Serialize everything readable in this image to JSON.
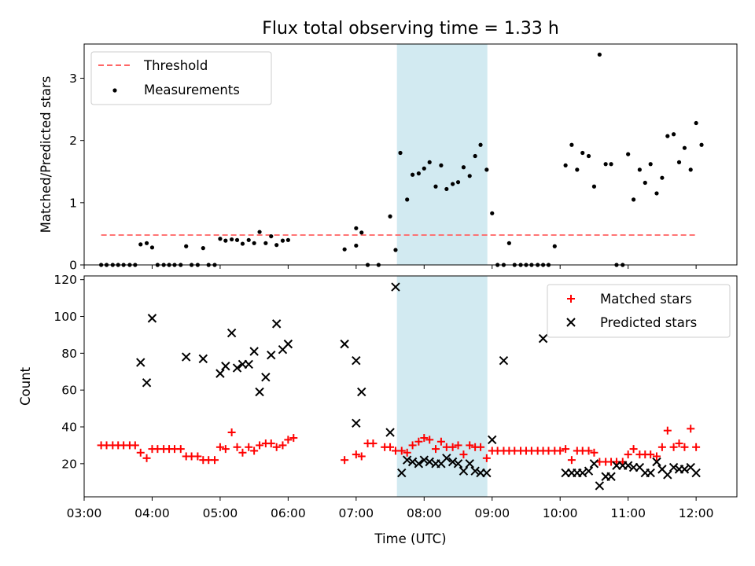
{
  "chart_data": [
    {
      "type": "scatter",
      "title": "Flux total observing time = 1.33 h",
      "xlabel": "",
      "ylabel": "Matched/Predicted stars",
      "ylim": [
        0,
        3.55
      ],
      "xlim": [
        3.0,
        12.6
      ],
      "yticks": [
        0,
        1,
        2,
        3
      ],
      "shaded_span": {
        "start": 7.6,
        "end": 8.93,
        "color": "#add8e6"
      },
      "legend": {
        "placement": "top-left",
        "entries": [
          "Threshold",
          "Measurements"
        ]
      },
      "threshold": {
        "name": "Threshold",
        "value": 0.48,
        "x_start": 3.25,
        "x_end": 12.0,
        "color": "#ff6666"
      },
      "series": [
        {
          "name": "Measurements",
          "color": "#000000",
          "points": [
            [
              3.25,
              0
            ],
            [
              3.33,
              0
            ],
            [
              3.42,
              0
            ],
            [
              3.5,
              0
            ],
            [
              3.58,
              0
            ],
            [
              3.67,
              0
            ],
            [
              3.75,
              0
            ],
            [
              3.83,
              0.33
            ],
            [
              3.92,
              0.35
            ],
            [
              4.0,
              0.28
            ],
            [
              4.08,
              0
            ],
            [
              4.17,
              0
            ],
            [
              4.25,
              0
            ],
            [
              4.33,
              0
            ],
            [
              4.42,
              0
            ],
            [
              4.5,
              0.3
            ],
            [
              4.58,
              0
            ],
            [
              4.67,
              0
            ],
            [
              4.75,
              0.27
            ],
            [
              4.83,
              0
            ],
            [
              4.92,
              0
            ],
            [
              5.0,
              0.42
            ],
            [
              5.08,
              0.39
            ],
            [
              5.17,
              0.41
            ],
            [
              5.25,
              0.4
            ],
            [
              5.33,
              0.34
            ],
            [
              5.42,
              0.4
            ],
            [
              5.5,
              0.35
            ],
            [
              5.58,
              0.53
            ],
            [
              5.67,
              0.35
            ],
            [
              5.75,
              0.46
            ],
            [
              5.83,
              0.32
            ],
            [
              5.92,
              0.39
            ],
            [
              6.0,
              0.4
            ],
            [
              6.83,
              0.25
            ],
            [
              7.0,
              0.31
            ],
            [
              7.0,
              0.59
            ],
            [
              7.08,
              0.52
            ],
            [
              7.17,
              0
            ],
            [
              7.33,
              0
            ],
            [
              7.5,
              0.78
            ],
            [
              7.58,
              0.24
            ],
            [
              7.65,
              1.8
            ],
            [
              7.75,
              1.05
            ],
            [
              7.83,
              1.45
            ],
            [
              7.92,
              1.47
            ],
            [
              8.0,
              1.55
            ],
            [
              8.08,
              1.65
            ],
            [
              8.17,
              1.26
            ],
            [
              8.25,
              1.6
            ],
            [
              8.33,
              1.22
            ],
            [
              8.42,
              1.3
            ],
            [
              8.5,
              1.33
            ],
            [
              8.58,
              1.57
            ],
            [
              8.67,
              1.43
            ],
            [
              8.75,
              1.75
            ],
            [
              8.83,
              1.93
            ],
            [
              8.92,
              1.53
            ],
            [
              9.0,
              0.83
            ],
            [
              9.08,
              0
            ],
            [
              9.17,
              0
            ],
            [
              9.25,
              0.35
            ],
            [
              9.33,
              0
            ],
            [
              9.42,
              0
            ],
            [
              9.5,
              0
            ],
            [
              9.58,
              0
            ],
            [
              9.67,
              0
            ],
            [
              9.75,
              0
            ],
            [
              9.83,
              0
            ],
            [
              9.92,
              0.3
            ],
            [
              10.08,
              1.6
            ],
            [
              10.17,
              1.93
            ],
            [
              10.25,
              1.53
            ],
            [
              10.33,
              1.8
            ],
            [
              10.42,
              1.75
            ],
            [
              10.5,
              1.26
            ],
            [
              10.58,
              3.38
            ],
            [
              10.67,
              1.62
            ],
            [
              10.75,
              1.62
            ],
            [
              10.83,
              0
            ],
            [
              10.92,
              0
            ],
            [
              11.0,
              1.78
            ],
            [
              11.08,
              1.05
            ],
            [
              11.17,
              1.53
            ],
            [
              11.25,
              1.32
            ],
            [
              11.33,
              1.62
            ],
            [
              11.42,
              1.15
            ],
            [
              11.5,
              1.4
            ],
            [
              11.58,
              2.07
            ],
            [
              11.67,
              2.1
            ],
            [
              11.75,
              1.65
            ],
            [
              11.83,
              1.88
            ],
            [
              11.92,
              1.53
            ],
            [
              12.0,
              2.28
            ],
            [
              12.08,
              1.93
            ]
          ]
        }
      ]
    },
    {
      "type": "scatter",
      "title": "",
      "xlabel": "Time (UTC)",
      "ylabel": "Count",
      "ylim": [
        2,
        122
      ],
      "xlim": [
        3.0,
        12.6
      ],
      "yticks": [
        20,
        40,
        60,
        80,
        100,
        120
      ],
      "xtick_labels": [
        "03:00",
        "04:00",
        "05:00",
        "06:00",
        "07:00",
        "08:00",
        "09:00",
        "10:00",
        "11:00",
        "12:00"
      ],
      "xtick_values": [
        3,
        4,
        5,
        6,
        7,
        8,
        9,
        10,
        11,
        12
      ],
      "shaded_span": {
        "start": 7.6,
        "end": 8.93,
        "color": "#add8e6"
      },
      "legend": {
        "placement": "top-right",
        "entries": [
          "Matched stars",
          "Predicted stars"
        ]
      },
      "series": [
        {
          "name": "Matched stars",
          "marker": "+",
          "color": "#ff0000",
          "points": [
            [
              3.25,
              30
            ],
            [
              3.33,
              30
            ],
            [
              3.42,
              30
            ],
            [
              3.5,
              30
            ],
            [
              3.58,
              30
            ],
            [
              3.67,
              30
            ],
            [
              3.75,
              30
            ],
            [
              3.83,
              26
            ],
            [
              3.92,
              23
            ],
            [
              4.0,
              28
            ],
            [
              4.08,
              28
            ],
            [
              4.17,
              28
            ],
            [
              4.25,
              28
            ],
            [
              4.33,
              28
            ],
            [
              4.42,
              28
            ],
            [
              4.5,
              24
            ],
            [
              4.58,
              24
            ],
            [
              4.67,
              24
            ],
            [
              4.75,
              22
            ],
            [
              4.83,
              22
            ],
            [
              4.92,
              22
            ],
            [
              5.0,
              29
            ],
            [
              5.08,
              28
            ],
            [
              5.17,
              37
            ],
            [
              5.25,
              29
            ],
            [
              5.33,
              26
            ],
            [
              5.42,
              29
            ],
            [
              5.5,
              27
            ],
            [
              5.58,
              30
            ],
            [
              5.67,
              31
            ],
            [
              5.75,
              31
            ],
            [
              5.83,
              29
            ],
            [
              5.92,
              30
            ],
            [
              6.0,
              33
            ],
            [
              6.08,
              34
            ],
            [
              6.83,
              22
            ],
            [
              7.0,
              25
            ],
            [
              7.08,
              24
            ],
            [
              7.17,
              31
            ],
            [
              7.25,
              31
            ],
            [
              7.42,
              29
            ],
            [
              7.5,
              29
            ],
            [
              7.58,
              27
            ],
            [
              7.67,
              27
            ],
            [
              7.75,
              26
            ],
            [
              7.83,
              30
            ],
            [
              7.92,
              32
            ],
            [
              8.0,
              34
            ],
            [
              8.08,
              33
            ],
            [
              8.17,
              28
            ],
            [
              8.25,
              32
            ],
            [
              8.33,
              29
            ],
            [
              8.42,
              29
            ],
            [
              8.5,
              30
            ],
            [
              8.58,
              25
            ],
            [
              8.67,
              30
            ],
            [
              8.75,
              29
            ],
            [
              8.83,
              29
            ],
            [
              8.92,
              23
            ],
            [
              9.0,
              27
            ],
            [
              9.08,
              27
            ],
            [
              9.17,
              27
            ],
            [
              9.25,
              27
            ],
            [
              9.33,
              27
            ],
            [
              9.42,
              27
            ],
            [
              9.5,
              27
            ],
            [
              9.58,
              27
            ],
            [
              9.67,
              27
            ],
            [
              9.75,
              27
            ],
            [
              9.83,
              27
            ],
            [
              9.92,
              27
            ],
            [
              10.0,
              27
            ],
            [
              10.08,
              28
            ],
            [
              10.17,
              22
            ],
            [
              10.25,
              27
            ],
            [
              10.33,
              27
            ],
            [
              10.42,
              27
            ],
            [
              10.5,
              26
            ],
            [
              10.58,
              21
            ],
            [
              10.67,
              21
            ],
            [
              10.75,
              21
            ],
            [
              10.83,
              21
            ],
            [
              10.92,
              21
            ],
            [
              11.0,
              25
            ],
            [
              11.08,
              28
            ],
            [
              11.17,
              25
            ],
            [
              11.25,
              25
            ],
            [
              11.33,
              25
            ],
            [
              11.42,
              24
            ],
            [
              11.5,
              29
            ],
            [
              11.58,
              38
            ],
            [
              11.67,
              29
            ],
            [
              11.75,
              31
            ],
            [
              11.83,
              29
            ],
            [
              11.92,
              39
            ],
            [
              12.0,
              29
            ]
          ]
        },
        {
          "name": "Predicted stars",
          "marker": "x",
          "color": "#000000",
          "points": [
            [
              3.83,
              75
            ],
            [
              3.92,
              64
            ],
            [
              4.0,
              99
            ],
            [
              4.5,
              78
            ],
            [
              4.75,
              77
            ],
            [
              5.0,
              69
            ],
            [
              5.08,
              73
            ],
            [
              5.17,
              91
            ],
            [
              5.25,
              72
            ],
            [
              5.33,
              74
            ],
            [
              5.42,
              74
            ],
            [
              5.5,
              81
            ],
            [
              5.58,
              59
            ],
            [
              5.67,
              67
            ],
            [
              5.75,
              79
            ],
            [
              5.83,
              96
            ],
            [
              5.92,
              82
            ],
            [
              6.0,
              85
            ],
            [
              6.83,
              85
            ],
            [
              7.0,
              42
            ],
            [
              7.0,
              76
            ],
            [
              7.08,
              59
            ],
            [
              7.5,
              37
            ],
            [
              7.58,
              116
            ],
            [
              7.67,
              15
            ],
            [
              7.75,
              22
            ],
            [
              7.83,
              21
            ],
            [
              7.92,
              20
            ],
            [
              8.0,
              22
            ],
            [
              8.08,
              21
            ],
            [
              8.17,
              20
            ],
            [
              8.25,
              20
            ],
            [
              8.33,
              23
            ],
            [
              8.42,
              21
            ],
            [
              8.5,
              20
            ],
            [
              8.58,
              16
            ],
            [
              8.67,
              20
            ],
            [
              8.75,
              16
            ],
            [
              8.83,
              15
            ],
            [
              8.92,
              15
            ],
            [
              9.0,
              33
            ],
            [
              9.17,
              76
            ],
            [
              9.75,
              88
            ],
            [
              10.08,
              15
            ],
            [
              10.17,
              15
            ],
            [
              10.25,
              15
            ],
            [
              10.33,
              15
            ],
            [
              10.42,
              16
            ],
            [
              10.5,
              20
            ],
            [
              10.58,
              8
            ],
            [
              10.67,
              13
            ],
            [
              10.75,
              13
            ],
            [
              10.83,
              19
            ],
            [
              10.92,
              19
            ],
            [
              11.0,
              19
            ],
            [
              11.08,
              18
            ],
            [
              11.17,
              18
            ],
            [
              11.25,
              15
            ],
            [
              11.33,
              15
            ],
            [
              11.42,
              21
            ],
            [
              11.5,
              17
            ],
            [
              11.58,
              14
            ],
            [
              11.67,
              18
            ],
            [
              11.75,
              17
            ],
            [
              11.83,
              17
            ],
            [
              11.92,
              18
            ],
            [
              12.0,
              15
            ]
          ]
        }
      ]
    }
  ]
}
